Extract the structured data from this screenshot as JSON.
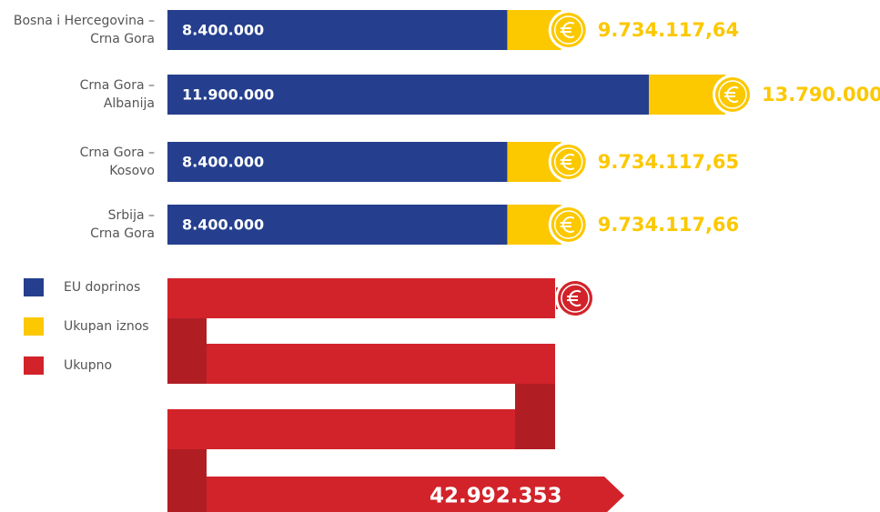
{
  "chart_data": {
    "type": "bar",
    "categories": [
      [
        "Bosna i Hercegovina –",
        "Crna Gora"
      ],
      [
        "Crna Gora –",
        "Albanija"
      ],
      [
        "Crna Gora –",
        "Kosovo"
      ],
      [
        "Srbija –",
        "Crna Gora"
      ]
    ],
    "series": [
      {
        "name": "EU doprinos",
        "color": "#253f8e",
        "values": [
          8400000,
          11900000,
          8400000,
          8400000
        ],
        "value_labels": [
          "8.400.000",
          "11.900.000",
          "8.400.000",
          "8.400.000"
        ]
      },
      {
        "name": "Ukupan iznos",
        "color": "#fcc800",
        "values": [
          9734117.64,
          13790000,
          9734117.65,
          9734117.66
        ],
        "value_labels": [
          "9.734.117,64",
          "13.790.000",
          "9.734.117,65",
          "9.734.117,66"
        ]
      }
    ],
    "total": {
      "name": "Ukupno",
      "color": "#d2232a",
      "value": 42992353,
      "value_label": "42.992.353"
    }
  }
}
